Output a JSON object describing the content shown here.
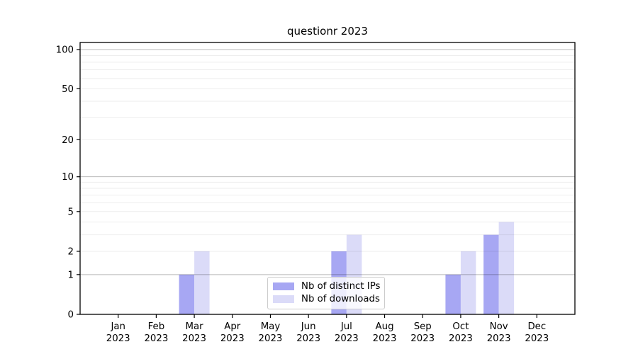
{
  "chart_data": {
    "type": "bar",
    "title": "questionr 2023",
    "categories": [
      "Jan",
      "Feb",
      "Mar",
      "Apr",
      "May",
      "Jun",
      "Jul",
      "Aug",
      "Sep",
      "Oct",
      "Nov",
      "Dec"
    ],
    "year": "2023",
    "series": [
      {
        "name": "Nb of distinct IPs",
        "color": "#a7a7f3",
        "values": [
          0,
          0,
          1,
          0,
          0,
          0,
          2,
          0,
          0,
          1,
          3,
          0
        ]
      },
      {
        "name": "Nb of downloads",
        "color": "#dbdbf8",
        "values": [
          0,
          0,
          2,
          0,
          0,
          0,
          3,
          0,
          0,
          2,
          4,
          0
        ]
      }
    ],
    "yscale": "log1p",
    "ylim": [
      0,
      113
    ],
    "yticks": [
      0,
      1,
      2,
      5,
      10,
      20,
      50,
      100
    ],
    "major_gridlines": [
      1,
      10,
      100
    ],
    "minor_gridlines": [
      2,
      3,
      4,
      5,
      6,
      7,
      8,
      9,
      20,
      30,
      40,
      50,
      60,
      70,
      80,
      90
    ],
    "grid": true,
    "legend_position": "inside-bottom-center",
    "xlabel": "",
    "ylabel": ""
  },
  "style": {
    "axis_color": "#000000",
    "major_grid_rgba": "rgba(0,0,0,0.28)",
    "minor_grid_rgba": "rgba(0,0,0,0.07)",
    "tick_label_color": "#000000"
  }
}
